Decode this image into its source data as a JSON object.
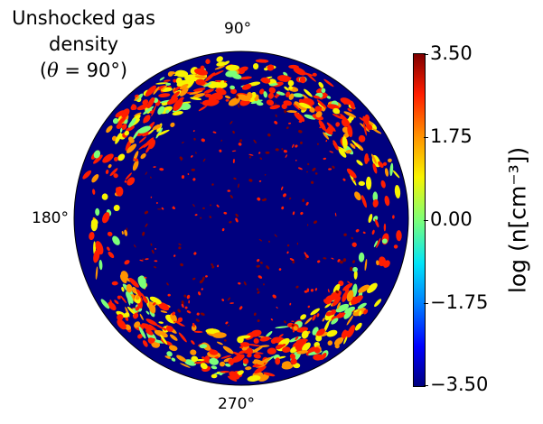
{
  "chart_data": {
    "type": "heatmap",
    "projection": "polar-disk",
    "title_lines": [
      "Unshocked gas",
      "density",
      "(θ = 90°)"
    ],
    "title_math_symbol": "θ",
    "angle_labels": [
      "90°",
      "180°",
      "270°"
    ],
    "colorbar": {
      "label": "log (n[cm⁻³])",
      "ticks": [
        "3.50",
        "1.75",
        "0.00",
        "−1.75",
        "−3.50"
      ],
      "range": [
        -3.5,
        3.5
      ],
      "colormap": "jet"
    },
    "background_value": -3.5,
    "ring_structure": {
      "outer_radius_fraction": 1.0,
      "ring_center_fraction": 0.83,
      "ring_width_fraction": 0.17,
      "typical_values": [
        1.0,
        1.75,
        2.5,
        3.0
      ],
      "interior_values": [
        3.0,
        3.5
      ]
    }
  },
  "colors": {
    "disk_background": "#00007f",
    "jet": [
      "#00007f",
      "#0000ff",
      "#0080ff",
      "#00e4f8",
      "#7cff79",
      "#f8f400",
      "#ff9400",
      "#ff1d00",
      "#7f0000"
    ]
  }
}
